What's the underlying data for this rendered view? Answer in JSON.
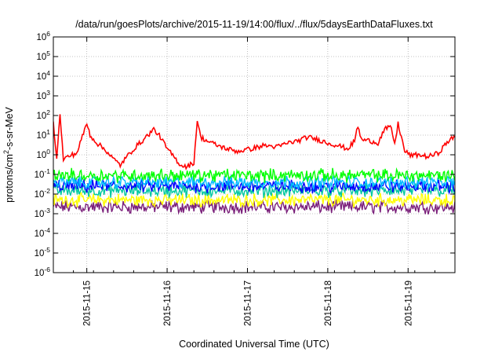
{
  "chart_data": {
    "type": "line",
    "title": "/data/run/goesPlots/archive/2015-11-19/14:00/flux/../flux/5daysEarthDataFluxes.txt",
    "xlabel": "Coordinated Universal Time (UTC)",
    "ylabel": {
      "base": "protons/cm",
      "sup": "2",
      "rest": "-s-sr-MeV"
    },
    "x_axis": {
      "range": [
        "2015-11-14T14:00",
        "2015-11-19T14:00"
      ],
      "ticks": [
        "2015-11-15",
        "2015-11-16",
        "2015-11-17",
        "2015-11-18",
        "2015-11-19"
      ]
    },
    "y_axis": {
      "scale": "log",
      "range": [
        1e-06,
        1000000.0
      ],
      "ticks": [
        {
          "value": 1e-06,
          "base": "10",
          "exp": "-6"
        },
        {
          "value": 1e-05,
          "base": "10",
          "exp": "-5"
        },
        {
          "value": 0.0001,
          "base": "10",
          "exp": "-4"
        },
        {
          "value": 0.001,
          "base": "10",
          "exp": "-3"
        },
        {
          "value": 0.01,
          "base": "10",
          "exp": "-2"
        },
        {
          "value": 0.1,
          "base": "10",
          "exp": "-1"
        },
        {
          "value": 1,
          "base": "10",
          "exp": "0"
        },
        {
          "value": 10.0,
          "base": "10",
          "exp": "1"
        },
        {
          "value": 100.0,
          "base": "10",
          "exp": "2"
        },
        {
          "value": 1000.0,
          "base": "10",
          "exp": "3"
        },
        {
          "value": 10000.0,
          "base": "10",
          "exp": "4"
        },
        {
          "value": 100000.0,
          "base": "10",
          "exp": "5"
        },
        {
          "value": 1000000.0,
          "base": "10",
          "exp": "6"
        }
      ]
    },
    "grid": true,
    "series": [
      {
        "color": "#ff0000",
        "x": [
          "2015-11-14T14:00",
          "2015-11-14T15:00",
          "2015-11-14T16:00",
          "2015-11-14T17:00",
          "2015-11-14T19:00",
          "2015-11-14T21:00",
          "2015-11-15T00:00",
          "2015-11-15T01:00",
          "2015-11-15T03:00",
          "2015-11-15T06:00",
          "2015-11-15T08:00",
          "2015-11-15T10:00",
          "2015-11-15T12:00",
          "2015-11-15T14:00",
          "2015-11-15T17:00",
          "2015-11-15T20:00",
          "2015-11-15T22:00",
          "2015-11-16T00:00",
          "2015-11-16T02:00",
          "2015-11-16T04:00",
          "2015-11-16T06:00",
          "2015-11-16T08:00",
          "2015-11-16T09:00",
          "2015-11-16T10:00",
          "2015-11-16T12:00",
          "2015-11-16T15:00",
          "2015-11-16T18:00",
          "2015-11-16T21:00",
          "2015-11-17T01:00",
          "2015-11-17T05:00",
          "2015-11-17T09:00",
          "2015-11-17T12:00",
          "2015-11-17T15:00",
          "2015-11-17T18:00",
          "2015-11-17T21:00",
          "2015-11-18T00:00",
          "2015-11-18T03:00",
          "2015-11-18T06:00",
          "2015-11-18T08:00",
          "2015-11-18T09:00",
          "2015-11-18T10:00",
          "2015-11-18T13:00",
          "2015-11-18T15:00",
          "2015-11-18T17:00",
          "2015-11-18T19:00",
          "2015-11-18T20:00",
          "2015-11-18T21:00",
          "2015-11-18T23:00",
          "2015-11-19T01:00",
          "2015-11-19T03:00",
          "2015-11-19T06:00",
          "2015-11-19T09:00",
          "2015-11-19T12:00",
          "2015-11-19T14:00"
        ],
        "values": [
          40,
          0.8,
          100,
          0.6,
          0.9,
          1.2,
          40,
          10,
          4,
          1.5,
          0.6,
          0.3,
          0.8,
          2,
          6,
          20,
          8,
          2,
          0.8,
          0.3,
          0.25,
          0.4,
          60,
          8,
          5,
          3,
          2,
          1.5,
          2,
          3,
          2.5,
          4,
          5,
          8,
          6,
          4,
          3,
          2,
          5,
          30,
          6,
          5,
          4,
          20,
          25,
          3,
          40,
          1.5,
          0.9,
          1,
          0.8,
          1.2,
          5,
          8
        ]
      },
      {
        "color": "#00ff00",
        "level": 0.09
      },
      {
        "color": "#00bbff",
        "level": 0.04
      },
      {
        "color": "#0000ff",
        "level": 0.025
      },
      {
        "color": "#00c8a0",
        "level": 0.015
      },
      {
        "color": "#ffff00",
        "level": 0.005
      },
      {
        "color": "#7a1f7a",
        "level": 0.0022
      }
    ]
  }
}
